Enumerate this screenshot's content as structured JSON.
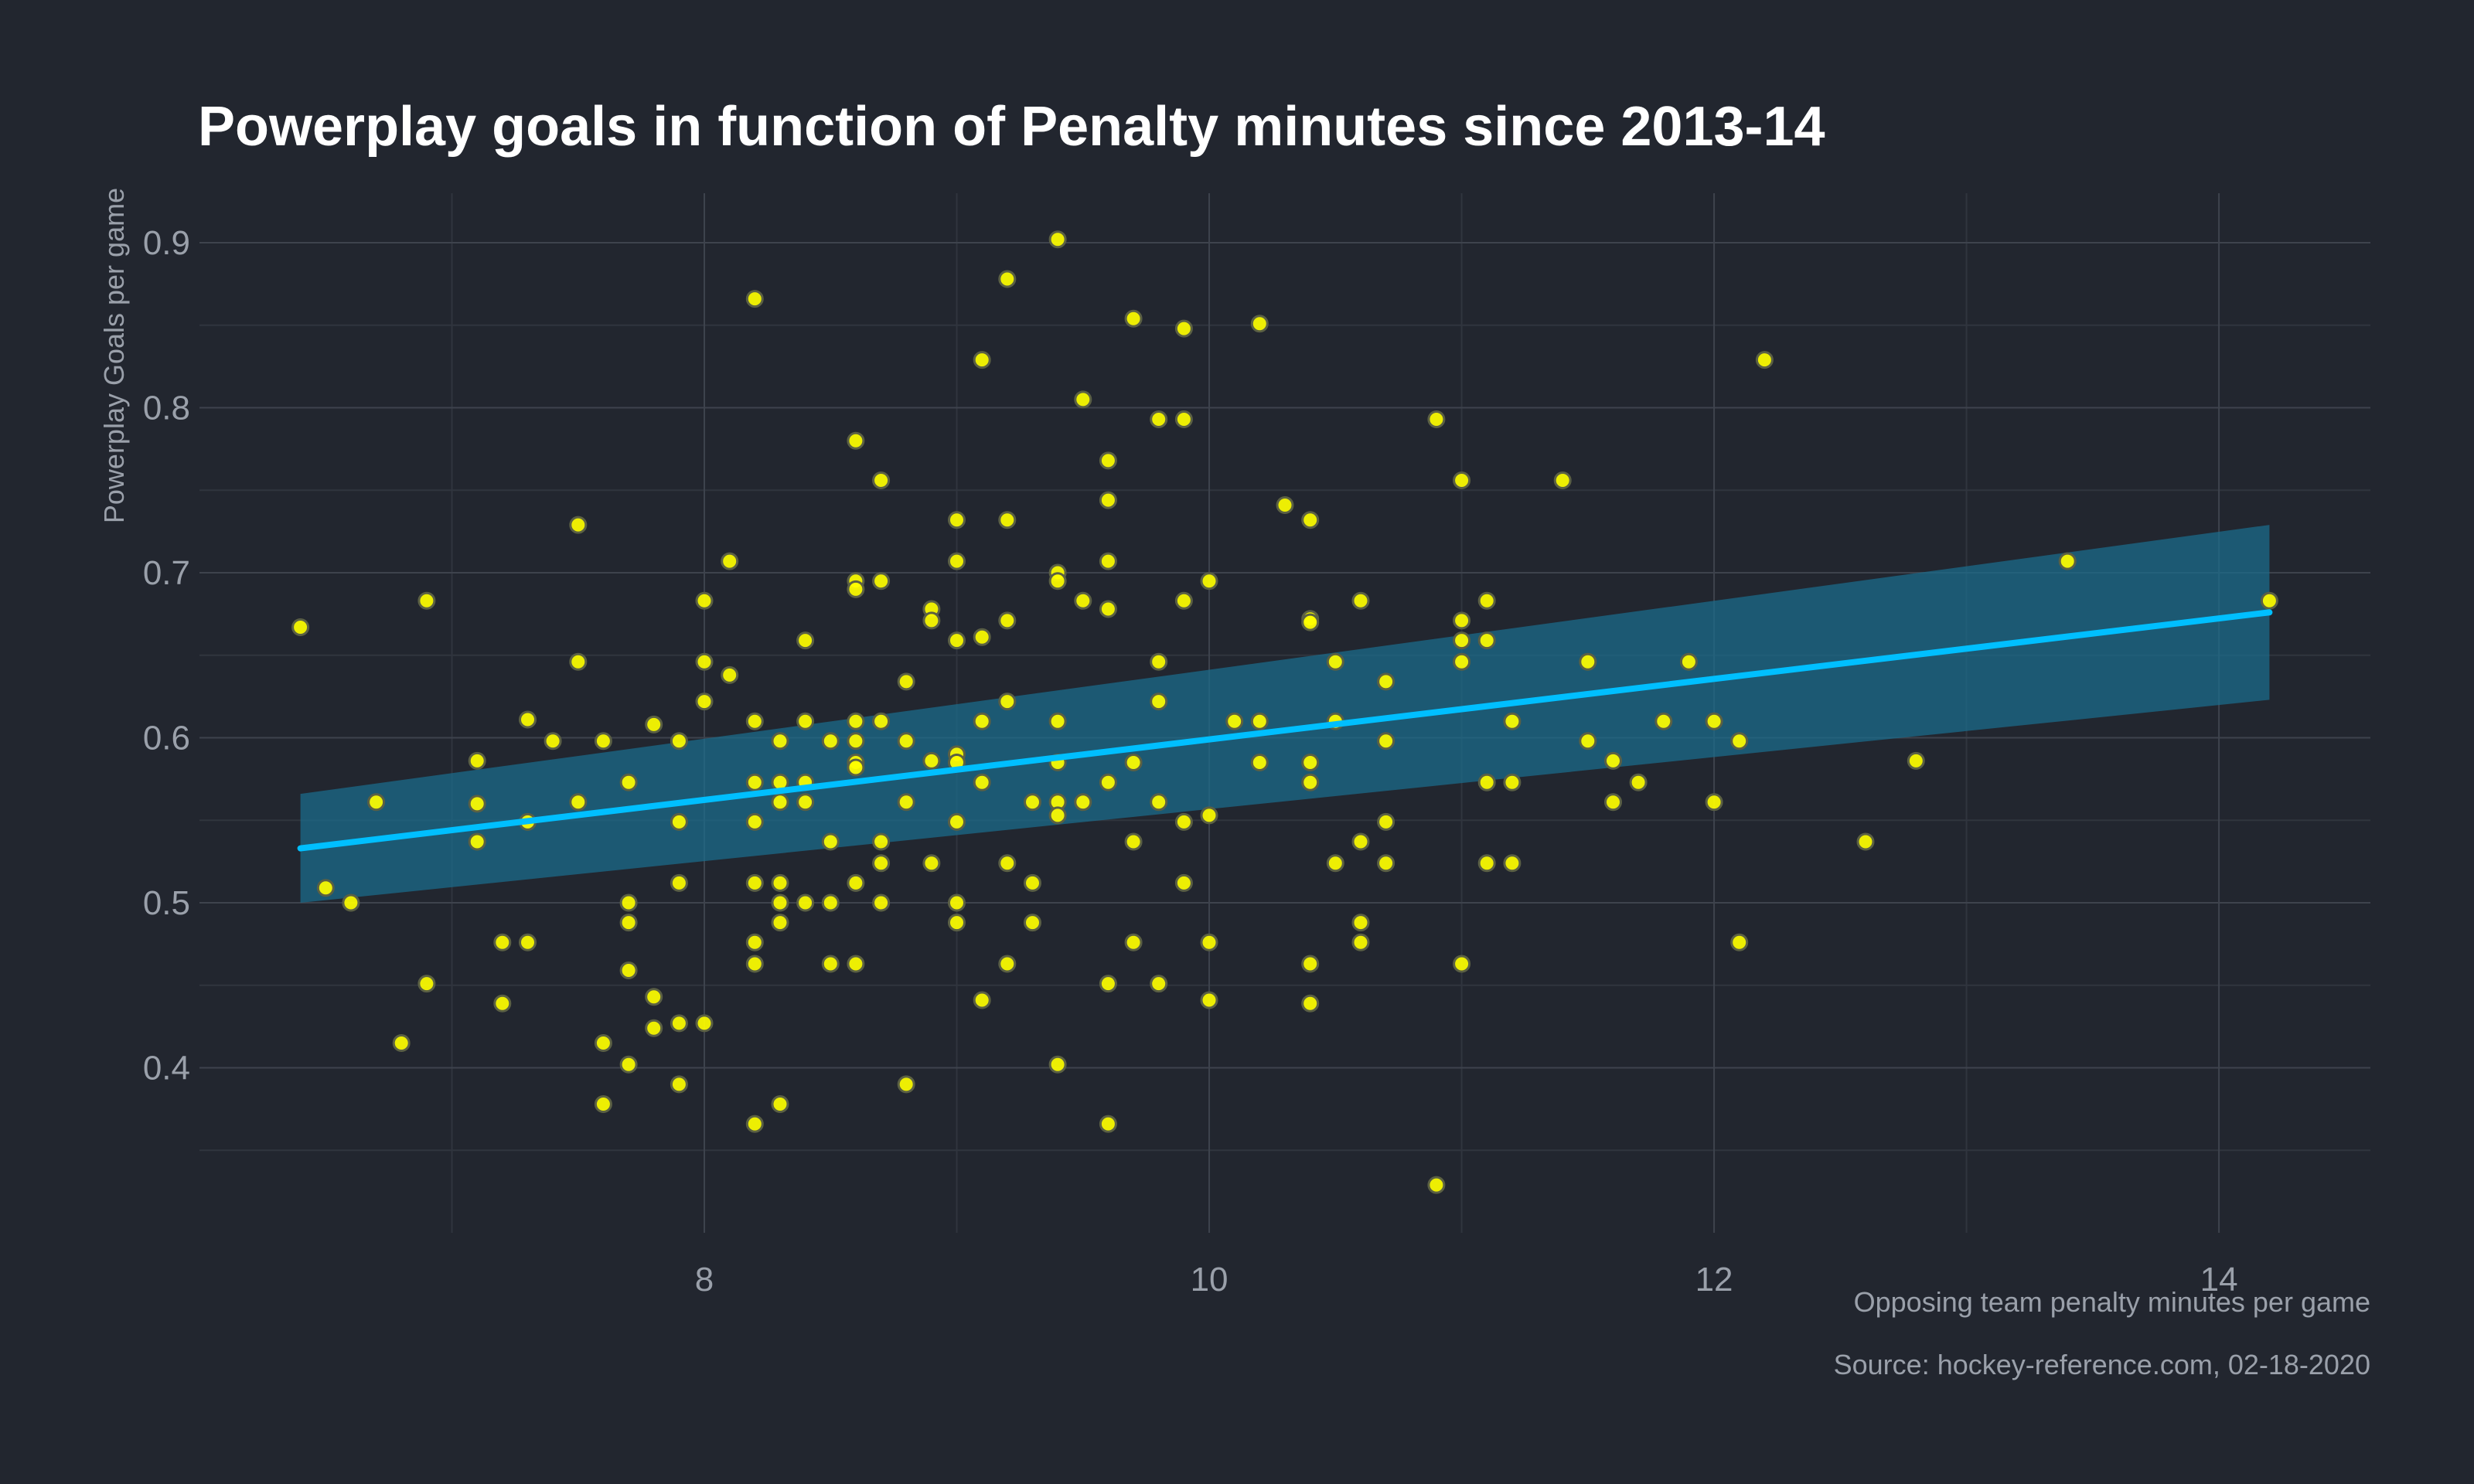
{
  "chart_data": {
    "type": "scatter",
    "title": "Powerplay goals in function of Penalty minutes since 2013-14",
    "xlabel": "Opposing team penalty minutes per game",
    "ylabel": "Powerplay Goals per game",
    "caption": "Source: hockey-reference.com, 02-18-2020",
    "xlim": [
      6.0,
      14.6
    ],
    "ylim": [
      0.3,
      0.93
    ],
    "x_ticks": [
      8,
      10,
      12,
      14
    ],
    "y_ticks": [
      0.4,
      0.5,
      0.6,
      0.7,
      0.8,
      0.9
    ],
    "grid": true,
    "colors": {
      "background": "#22262f",
      "points": "#ffff00",
      "fit_line": "#00bfff",
      "confidence_band": "#1a6e8e"
    },
    "fit": {
      "method": "linear",
      "x": [
        6.4,
        14.2
      ],
      "y": [
        0.533,
        0.676
      ],
      "ci_lower": [
        0.5,
        0.623
      ],
      "ci_upper": [
        0.566,
        0.729
      ]
    },
    "points": [
      [
        6.4,
        0.667
      ],
      [
        6.5,
        0.509
      ],
      [
        6.6,
        0.5
      ],
      [
        6.7,
        0.561
      ],
      [
        6.8,
        0.415
      ],
      [
        6.9,
        0.683
      ],
      [
        6.9,
        0.451
      ],
      [
        7.1,
        0.586
      ],
      [
        7.1,
        0.56
      ],
      [
        7.1,
        0.537
      ],
      [
        7.2,
        0.476
      ],
      [
        7.2,
        0.439
      ],
      [
        7.3,
        0.611
      ],
      [
        7.3,
        0.549
      ],
      [
        7.3,
        0.476
      ],
      [
        7.4,
        0.598
      ],
      [
        7.5,
        0.729
      ],
      [
        7.5,
        0.646
      ],
      [
        7.5,
        0.561
      ],
      [
        7.6,
        0.598
      ],
      [
        7.6,
        0.415
      ],
      [
        7.6,
        0.378
      ],
      [
        7.7,
        0.573
      ],
      [
        7.7,
        0.5
      ],
      [
        7.7,
        0.488
      ],
      [
        7.7,
        0.459
      ],
      [
        7.7,
        0.402
      ],
      [
        7.8,
        0.608
      ],
      [
        7.8,
        0.443
      ],
      [
        7.8,
        0.424
      ],
      [
        7.9,
        0.598
      ],
      [
        7.9,
        0.549
      ],
      [
        7.9,
        0.512
      ],
      [
        7.9,
        0.427
      ],
      [
        7.9,
        0.39
      ],
      [
        8.0,
        0.683
      ],
      [
        8.0,
        0.646
      ],
      [
        8.0,
        0.622
      ],
      [
        8.0,
        0.427
      ],
      [
        8.1,
        0.707
      ],
      [
        8.1,
        0.638
      ],
      [
        8.2,
        0.866
      ],
      [
        8.2,
        0.61
      ],
      [
        8.2,
        0.573
      ],
      [
        8.2,
        0.549
      ],
      [
        8.2,
        0.512
      ],
      [
        8.2,
        0.476
      ],
      [
        8.2,
        0.463
      ],
      [
        8.2,
        0.366
      ],
      [
        8.3,
        0.598
      ],
      [
        8.3,
        0.573
      ],
      [
        8.3,
        0.561
      ],
      [
        8.3,
        0.512
      ],
      [
        8.3,
        0.5
      ],
      [
        8.3,
        0.488
      ],
      [
        8.3,
        0.378
      ],
      [
        8.4,
        0.659
      ],
      [
        8.4,
        0.61
      ],
      [
        8.4,
        0.573
      ],
      [
        8.4,
        0.561
      ],
      [
        8.4,
        0.5
      ],
      [
        8.5,
        0.598
      ],
      [
        8.5,
        0.537
      ],
      [
        8.5,
        0.5
      ],
      [
        8.5,
        0.463
      ],
      [
        8.6,
        0.78
      ],
      [
        8.6,
        0.695
      ],
      [
        8.6,
        0.69
      ],
      [
        8.6,
        0.61
      ],
      [
        8.6,
        0.598
      ],
      [
        8.6,
        0.585
      ],
      [
        8.6,
        0.582
      ],
      [
        8.6,
        0.512
      ],
      [
        8.6,
        0.463
      ],
      [
        8.7,
        0.756
      ],
      [
        8.7,
        0.695
      ],
      [
        8.7,
        0.61
      ],
      [
        8.7,
        0.537
      ],
      [
        8.7,
        0.524
      ],
      [
        8.7,
        0.5
      ],
      [
        8.8,
        0.634
      ],
      [
        8.8,
        0.598
      ],
      [
        8.8,
        0.561
      ],
      [
        8.8,
        0.39
      ],
      [
        8.9,
        0.678
      ],
      [
        8.9,
        0.671
      ],
      [
        8.9,
        0.586
      ],
      [
        8.9,
        0.524
      ],
      [
        9.0,
        0.732
      ],
      [
        9.0,
        0.707
      ],
      [
        9.0,
        0.659
      ],
      [
        9.0,
        0.59
      ],
      [
        9.0,
        0.585
      ],
      [
        9.0,
        0.549
      ],
      [
        9.0,
        0.5
      ],
      [
        9.0,
        0.488
      ],
      [
        9.1,
        0.829
      ],
      [
        9.1,
        0.661
      ],
      [
        9.1,
        0.61
      ],
      [
        9.1,
        0.573
      ],
      [
        9.1,
        0.441
      ],
      [
        9.2,
        0.878
      ],
      [
        9.2,
        0.732
      ],
      [
        9.2,
        0.671
      ],
      [
        9.2,
        0.622
      ],
      [
        9.2,
        0.524
      ],
      [
        9.2,
        0.463
      ],
      [
        9.3,
        0.561
      ],
      [
        9.3,
        0.512
      ],
      [
        9.3,
        0.488
      ],
      [
        9.4,
        0.902
      ],
      [
        9.4,
        0.7
      ],
      [
        9.4,
        0.695
      ],
      [
        9.4,
        0.61
      ],
      [
        9.4,
        0.585
      ],
      [
        9.4,
        0.561
      ],
      [
        9.4,
        0.553
      ],
      [
        9.4,
        0.402
      ],
      [
        9.5,
        0.805
      ],
      [
        9.5,
        0.683
      ],
      [
        9.5,
        0.561
      ],
      [
        9.6,
        0.768
      ],
      [
        9.6,
        0.744
      ],
      [
        9.6,
        0.707
      ],
      [
        9.6,
        0.678
      ],
      [
        9.6,
        0.573
      ],
      [
        9.6,
        0.451
      ],
      [
        9.6,
        0.366
      ],
      [
        9.7,
        0.854
      ],
      [
        9.7,
        0.585
      ],
      [
        9.7,
        0.537
      ],
      [
        9.7,
        0.476
      ],
      [
        9.8,
        0.793
      ],
      [
        9.8,
        0.646
      ],
      [
        9.8,
        0.622
      ],
      [
        9.8,
        0.561
      ],
      [
        9.8,
        0.451
      ],
      [
        9.9,
        0.848
      ],
      [
        9.9,
        0.793
      ],
      [
        9.9,
        0.683
      ],
      [
        9.9,
        0.549
      ],
      [
        9.9,
        0.512
      ],
      [
        10.0,
        0.695
      ],
      [
        10.0,
        0.553
      ],
      [
        10.0,
        0.476
      ],
      [
        10.0,
        0.441
      ],
      [
        10.1,
        0.61
      ],
      [
        10.2,
        0.851
      ],
      [
        10.2,
        0.61
      ],
      [
        10.2,
        0.585
      ],
      [
        10.3,
        0.741
      ],
      [
        10.4,
        0.732
      ],
      [
        10.4,
        0.672
      ],
      [
        10.4,
        0.67
      ],
      [
        10.4,
        0.585
      ],
      [
        10.4,
        0.573
      ],
      [
        10.4,
        0.463
      ],
      [
        10.4,
        0.439
      ],
      [
        10.5,
        0.646
      ],
      [
        10.5,
        0.61
      ],
      [
        10.5,
        0.524
      ],
      [
        10.6,
        0.683
      ],
      [
        10.6,
        0.537
      ],
      [
        10.6,
        0.488
      ],
      [
        10.6,
        0.476
      ],
      [
        10.7,
        0.634
      ],
      [
        10.7,
        0.598
      ],
      [
        10.7,
        0.549
      ],
      [
        10.7,
        0.524
      ],
      [
        10.9,
        0.793
      ],
      [
        10.9,
        0.329
      ],
      [
        11.0,
        0.756
      ],
      [
        11.0,
        0.671
      ],
      [
        11.0,
        0.659
      ],
      [
        11.0,
        0.646
      ],
      [
        11.0,
        0.463
      ],
      [
        11.1,
        0.683
      ],
      [
        11.1,
        0.659
      ],
      [
        11.1,
        0.573
      ],
      [
        11.1,
        0.524
      ],
      [
        11.2,
        0.61
      ],
      [
        11.2,
        0.573
      ],
      [
        11.2,
        0.524
      ],
      [
        11.4,
        0.756
      ],
      [
        11.5,
        0.646
      ],
      [
        11.5,
        0.598
      ],
      [
        11.6,
        0.586
      ],
      [
        11.6,
        0.561
      ],
      [
        11.7,
        0.573
      ],
      [
        11.8,
        0.61
      ],
      [
        11.9,
        0.646
      ],
      [
        12.0,
        0.61
      ],
      [
        12.0,
        0.561
      ],
      [
        12.1,
        0.598
      ],
      [
        12.1,
        0.476
      ],
      [
        12.2,
        0.829
      ],
      [
        12.6,
        0.537
      ],
      [
        12.8,
        0.586
      ],
      [
        13.4,
        0.707
      ],
      [
        14.2,
        0.683
      ]
    ]
  }
}
